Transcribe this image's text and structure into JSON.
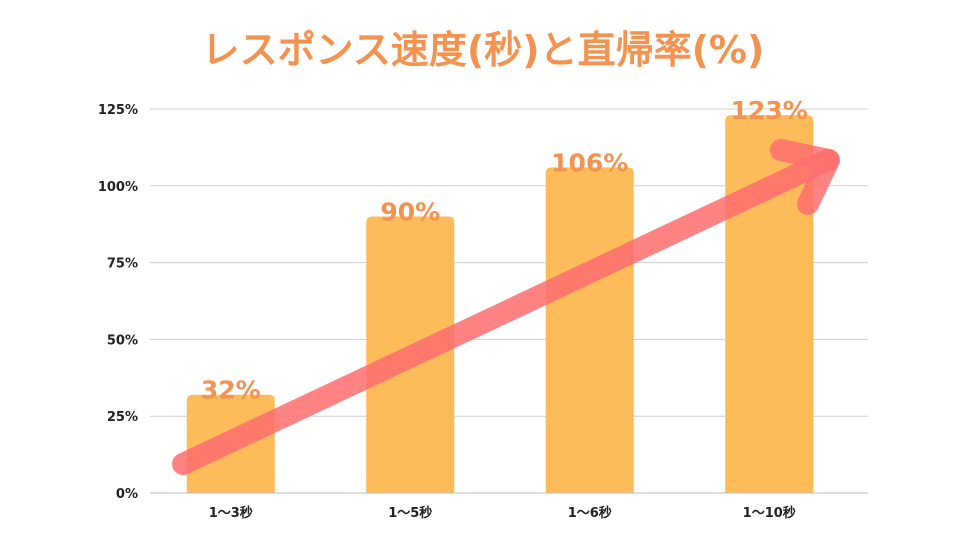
{
  "chart_data": {
    "type": "bar",
    "title": "レスポンス速度(秒)と直帰率(%)",
    "categories": [
      "1～3秒",
      "1～5秒",
      "1～6秒",
      "1～10秒"
    ],
    "values": [
      32,
      90,
      106,
      123
    ],
    "data_labels": [
      "32%",
      "90%",
      "106%",
      "123%"
    ],
    "ylim": [
      0,
      125
    ],
    "yticks": [
      {
        "value": 0,
        "label": "0%"
      },
      {
        "value": 25,
        "label": "25%"
      },
      {
        "value": 50,
        "label": "50%"
      },
      {
        "value": 75,
        "label": "75%"
      },
      {
        "value": 100,
        "label": "100%"
      },
      {
        "value": 125,
        "label": "125%"
      }
    ],
    "grid": true,
    "bar_color": "#fdbb5a",
    "label_color": "#f4924f",
    "title_color": "#f4924f",
    "trend_arrow": {
      "color": "#ff6e6e",
      "from_category_index": 0,
      "to_category_index": 3,
      "direction": "up-right"
    }
  }
}
